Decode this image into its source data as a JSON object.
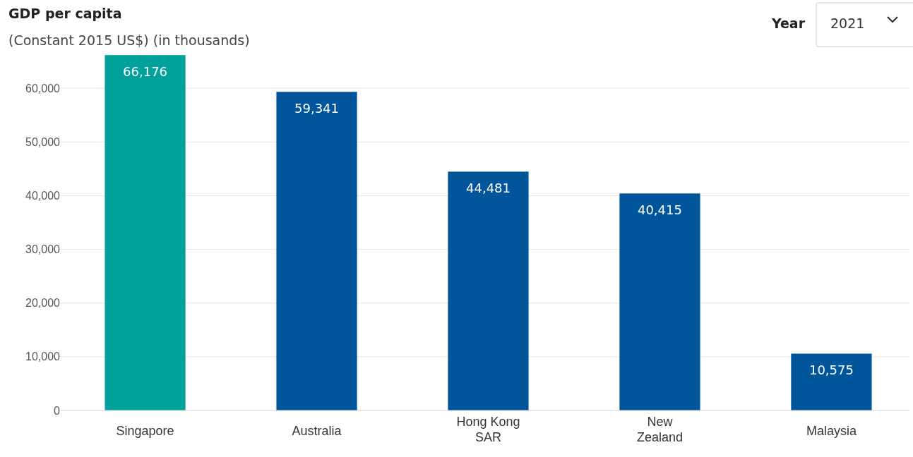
{
  "chart_data": {
    "type": "bar",
    "title": "GDP per capita",
    "subtitle": "(Constant 2015 US$) (in thousands)",
    "annotations": [
      "Year",
      "2021"
    ],
    "categories": [
      "Singapore",
      "Australia",
      "Hong Kong SAR",
      "New Zealand",
      "Malaysia"
    ],
    "values": [
      66176,
      59341,
      44481,
      40415,
      10575
    ],
    "colors": [
      "#00a19a",
      "#00559b",
      "#00559b",
      "#00559b",
      "#00559b"
    ],
    "value_labels": [
      "66,176",
      "59,341",
      "44,481",
      "40,415",
      "10,575"
    ],
    "ylim": [
      0,
      66200
    ],
    "yticks": [
      {
        "value": 0,
        "label": "0"
      },
      {
        "value": 10000,
        "label": "10,000"
      },
      {
        "value": 20000,
        "label": "20,000"
      },
      {
        "value": 30000,
        "label": "30,000"
      },
      {
        "value": 40000,
        "label": "40,000"
      },
      {
        "value": 50000,
        "label": "50,000"
      },
      {
        "value": 60000,
        "label": "60,000"
      }
    ],
    "grid": "y"
  }
}
